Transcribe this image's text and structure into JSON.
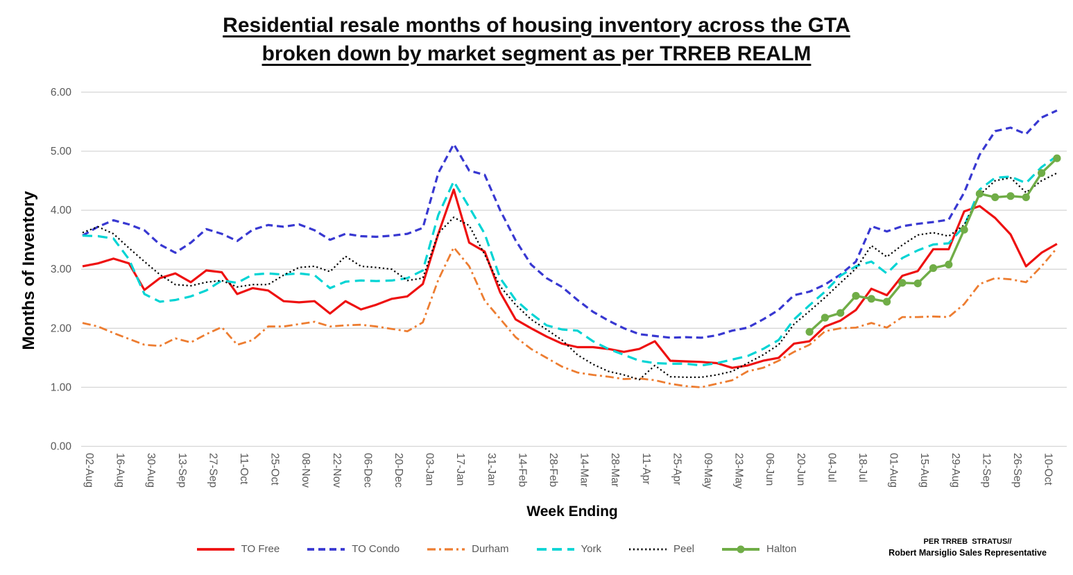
{
  "page": {
    "title_line1": "Residential resale months of housing inventory across the GTA",
    "title_line2": "broken down by market segment as per TRREB REALM"
  },
  "footnote": {
    "line1": "PER TRREB  STRATUS//",
    "line2": "Robert Marsiglio Sales Representative"
  },
  "chart_data": {
    "type": "line",
    "title": "Residential resale months of housing inventory across the GTA broken down by market segment as per TRREB REALM",
    "xlabel": "Week Ending",
    "ylabel": "Months of Inventory",
    "ylim": [
      0,
      6
    ],
    "y_ticks": [
      "6.00",
      "5.00",
      "4.00",
      "3.00",
      "2.00",
      "1.00",
      "0.00"
    ],
    "grid": "horizontal",
    "legend_position": "bottom",
    "x_label_interval_weeks": 2,
    "x_labels": [
      "02-Aug",
      "16-Aug",
      "30-Aug",
      "13-Sep",
      "27-Sep",
      "11-Oct",
      "25-Oct",
      "08-Nov",
      "22-Nov",
      "06-Dec",
      "20-Dec",
      "03-Jan",
      "17-Jan",
      "31-Jan",
      "14-Feb",
      "28-Feb",
      "14-Mar",
      "28-Mar",
      "11-Apr",
      "25-Apr",
      "09-May",
      "23-May",
      "06-Jun",
      "20-Jun",
      "04-Jul",
      "18-Jul",
      "01-Aug",
      "15-Aug",
      "29-Aug",
      "12-Sep",
      "26-Sep",
      "10-Oct"
    ],
    "series": [
      {
        "name": "TO Free",
        "color": "#EE1111",
        "style": "solid",
        "width": 3.2,
        "values": [
          3.05,
          3.1,
          3.18,
          3.1,
          2.65,
          2.85,
          2.93,
          2.78,
          2.98,
          2.95,
          2.58,
          2.68,
          2.64,
          2.46,
          2.44,
          2.46,
          2.25,
          2.46,
          2.32,
          2.4,
          2.5,
          2.54,
          2.75,
          3.6,
          4.35,
          3.45,
          3.3,
          2.61,
          2.15,
          2.0,
          1.86,
          1.74,
          1.68,
          1.68,
          1.65,
          1.6,
          1.65,
          1.78,
          1.45,
          1.44,
          1.43,
          1.41,
          1.33,
          1.37,
          1.45,
          1.5,
          1.74,
          1.78,
          2.03,
          2.13,
          2.31,
          2.67,
          2.56,
          2.89,
          2.97,
          3.34,
          3.34,
          3.98,
          4.07,
          3.87,
          3.59,
          3.05,
          3.28,
          3.43
        ]
      },
      {
        "name": "TO Condo",
        "color": "#3838D1",
        "style": "dash",
        "width": 3.2,
        "values": [
          3.57,
          3.72,
          3.83,
          3.76,
          3.66,
          3.42,
          3.28,
          3.45,
          3.68,
          3.6,
          3.48,
          3.67,
          3.75,
          3.72,
          3.76,
          3.66,
          3.5,
          3.6,
          3.56,
          3.55,
          3.57,
          3.6,
          3.7,
          4.63,
          5.12,
          4.67,
          4.6,
          4.0,
          3.49,
          3.08,
          2.85,
          2.7,
          2.48,
          2.28,
          2.13,
          2.0,
          1.9,
          1.87,
          1.84,
          1.85,
          1.84,
          1.88,
          1.96,
          2.01,
          2.15,
          2.31,
          2.56,
          2.62,
          2.74,
          2.91,
          3.13,
          3.73,
          3.64,
          3.73,
          3.77,
          3.8,
          3.84,
          4.3,
          4.94,
          5.34,
          5.4,
          5.29,
          5.57,
          5.69
        ]
      },
      {
        "name": "Durham",
        "color": "#ED7D31",
        "style": "dash-dot",
        "width": 2.8,
        "values": [
          2.09,
          2.03,
          1.92,
          1.82,
          1.72,
          1.7,
          1.83,
          1.76,
          1.9,
          2.02,
          1.72,
          1.8,
          2.03,
          2.03,
          2.07,
          2.11,
          2.03,
          2.05,
          2.06,
          2.03,
          1.99,
          1.95,
          2.1,
          2.82,
          3.37,
          3.05,
          2.47,
          2.16,
          1.85,
          1.65,
          1.5,
          1.35,
          1.25,
          1.21,
          1.18,
          1.14,
          1.15,
          1.12,
          1.06,
          1.02,
          1.0,
          1.06,
          1.12,
          1.27,
          1.33,
          1.45,
          1.6,
          1.72,
          1.95,
          2.0,
          2.01,
          2.09,
          2.01,
          2.19,
          2.19,
          2.2,
          2.19,
          2.41,
          2.75,
          2.85,
          2.83,
          2.78,
          3.05,
          3.36
        ]
      },
      {
        "name": "York",
        "color": "#00D4D4",
        "style": "long-dash",
        "width": 3.2,
        "values": [
          3.57,
          3.56,
          3.52,
          3.17,
          2.58,
          2.45,
          2.48,
          2.54,
          2.64,
          2.81,
          2.77,
          2.91,
          2.93,
          2.91,
          2.93,
          2.9,
          2.68,
          2.79,
          2.81,
          2.8,
          2.81,
          2.85,
          2.98,
          3.92,
          4.49,
          4.05,
          3.6,
          2.85,
          2.48,
          2.25,
          2.05,
          1.98,
          1.96,
          1.78,
          1.65,
          1.55,
          1.45,
          1.41,
          1.4,
          1.4,
          1.37,
          1.41,
          1.47,
          1.53,
          1.65,
          1.8,
          2.15,
          2.39,
          2.62,
          2.89,
          3.05,
          3.13,
          2.93,
          3.19,
          3.32,
          3.42,
          3.44,
          3.73,
          4.35,
          4.55,
          4.57,
          4.46,
          4.73,
          4.92
        ]
      },
      {
        "name": "Peel",
        "color": "#000000",
        "style": "dot",
        "width": 2.2,
        "values": [
          3.62,
          3.72,
          3.6,
          3.36,
          3.13,
          2.91,
          2.74,
          2.72,
          2.78,
          2.81,
          2.7,
          2.74,
          2.74,
          2.9,
          3.03,
          3.05,
          2.96,
          3.22,
          3.05,
          3.03,
          3.0,
          2.81,
          2.85,
          3.61,
          3.88,
          3.74,
          3.25,
          2.71,
          2.4,
          2.15,
          1.98,
          1.8,
          1.55,
          1.39,
          1.27,
          1.21,
          1.13,
          1.37,
          1.18,
          1.17,
          1.17,
          1.21,
          1.27,
          1.41,
          1.55,
          1.72,
          2.07,
          2.29,
          2.52,
          2.77,
          3.01,
          3.4,
          3.21,
          3.41,
          3.58,
          3.62,
          3.56,
          3.75,
          4.26,
          4.5,
          4.55,
          4.3,
          4.5,
          4.63
        ]
      },
      {
        "name": "Halton",
        "color": "#70AD47",
        "style": "solid-marker",
        "width": 3.4,
        "values": [
          null,
          null,
          null,
          null,
          null,
          null,
          null,
          null,
          null,
          null,
          null,
          null,
          null,
          null,
          null,
          null,
          null,
          null,
          null,
          null,
          null,
          null,
          null,
          null,
          null,
          null,
          null,
          null,
          null,
          null,
          null,
          null,
          null,
          null,
          null,
          null,
          null,
          null,
          null,
          null,
          null,
          null,
          null,
          null,
          null,
          null,
          null,
          1.94,
          2.18,
          2.26,
          2.55,
          2.5,
          2.45,
          2.77,
          2.76,
          3.02,
          3.08,
          3.67,
          4.28,
          4.22,
          4.24,
          4.22,
          4.63,
          4.88
        ]
      }
    ]
  }
}
